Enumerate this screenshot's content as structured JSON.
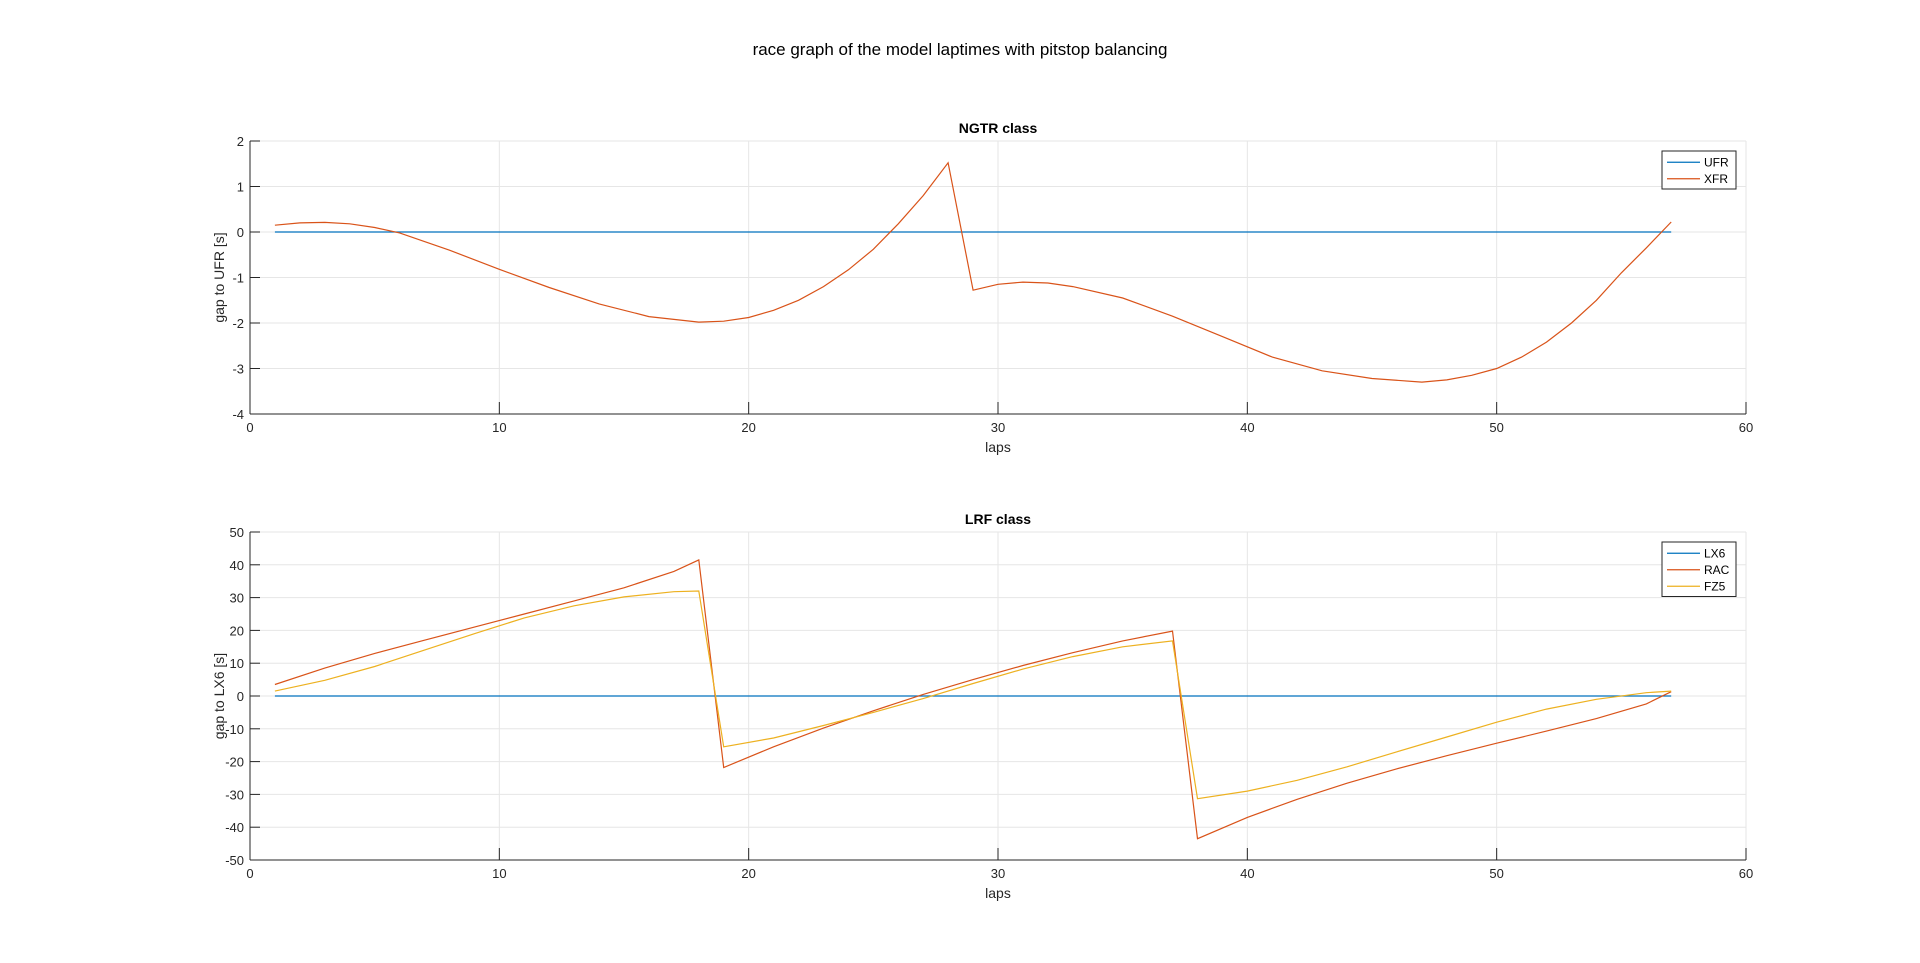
{
  "figure": {
    "suptitle": "race graph of the model laptimes with pitstop balancing"
  },
  "chart_data": [
    {
      "type": "line",
      "title": "NGTR class",
      "xlabel": "laps",
      "ylabel": "gap to UFR [s]",
      "xlim": [
        0,
        60
      ],
      "ylim": [
        -4,
        2
      ],
      "xticks": [
        "0",
        "10",
        "20",
        "30",
        "40",
        "50",
        "60"
      ],
      "yticks": [
        "2",
        "1",
        "0",
        "-1",
        "-2",
        "-3",
        "-4"
      ],
      "xtick_values": [
        0,
        10,
        20,
        30,
        40,
        50,
        60
      ],
      "ytick_values": [
        2,
        1,
        0,
        -1,
        -2,
        -3,
        -4
      ],
      "grid": true,
      "legend_position": "top-right",
      "series": [
        {
          "name": "UFR",
          "color": "#0072BD",
          "x": [
            1,
            57
          ],
          "y": [
            0,
            0
          ]
        },
        {
          "name": "XFR",
          "color": "#D95319",
          "x": [
            1,
            2,
            3,
            4,
            5,
            6,
            8,
            10,
            12,
            14,
            16,
            18,
            19,
            20,
            21,
            22,
            23,
            24,
            25,
            26,
            27,
            28,
            29,
            30,
            31,
            32,
            33,
            35,
            37,
            39,
            41,
            43,
            45,
            47,
            48,
            49,
            50,
            51,
            52,
            53,
            54,
            55,
            56,
            57
          ],
          "y": [
            0.15,
            0.2,
            0.21,
            0.18,
            0.1,
            -0.02,
            -0.4,
            -0.82,
            -1.22,
            -1.58,
            -1.86,
            -1.98,
            -1.96,
            -1.88,
            -1.72,
            -1.5,
            -1.2,
            -0.83,
            -0.38,
            0.18,
            0.8,
            1.52,
            -1.28,
            -1.15,
            -1.1,
            -1.12,
            -1.2,
            -1.45,
            -1.85,
            -2.3,
            -2.75,
            -3.05,
            -3.22,
            -3.3,
            -3.25,
            -3.15,
            -3.0,
            -2.75,
            -2.42,
            -2.0,
            -1.5,
            -0.9,
            -0.35,
            0.22
          ]
        }
      ]
    },
    {
      "type": "line",
      "title": "LRF class",
      "xlabel": "laps",
      "ylabel": "gap to LX6 [s]",
      "xlim": [
        0,
        60
      ],
      "ylim": [
        -50,
        50
      ],
      "xticks": [
        "0",
        "10",
        "20",
        "30",
        "40",
        "50",
        "60"
      ],
      "yticks": [
        "50",
        "40",
        "30",
        "20",
        "10",
        "0",
        "-10",
        "-20",
        "-30",
        "-40",
        "-50"
      ],
      "xtick_values": [
        0,
        10,
        20,
        30,
        40,
        50,
        60
      ],
      "ytick_values": [
        50,
        40,
        30,
        20,
        10,
        0,
        -10,
        -20,
        -30,
        -40,
        -50
      ],
      "grid": true,
      "legend_position": "top-right",
      "series": [
        {
          "name": "LX6",
          "color": "#0072BD",
          "x": [
            1,
            57
          ],
          "y": [
            0,
            0
          ]
        },
        {
          "name": "RAC",
          "color": "#D95319",
          "x": [
            1,
            3,
            5,
            7,
            9,
            11,
            13,
            15,
            17,
            18,
            19,
            21,
            23,
            25,
            27,
            29,
            31,
            33,
            35,
            37,
            38,
            40,
            42,
            44,
            46,
            48,
            50,
            52,
            54,
            56,
            57
          ],
          "y": [
            3.5,
            8.5,
            13.0,
            17.0,
            21.0,
            25.0,
            29.0,
            33.0,
            38.0,
            41.5,
            -21.8,
            -15.5,
            -9.8,
            -4.5,
            0.5,
            5.0,
            9.3,
            13.2,
            16.8,
            19.8,
            -43.5,
            -37.0,
            -31.5,
            -26.6,
            -22.2,
            -18.2,
            -14.4,
            -10.7,
            -6.9,
            -2.4,
            1.3
          ]
        },
        {
          "name": "FZ5",
          "color": "#EDB120",
          "x": [
            1,
            3,
            5,
            7,
            9,
            11,
            13,
            15,
            17,
            18,
            19,
            21,
            23,
            25,
            27,
            29,
            31,
            33,
            35,
            37,
            38,
            40,
            42,
            44,
            46,
            48,
            50,
            52,
            54,
            56,
            57
          ],
          "y": [
            1.5,
            4.8,
            9.0,
            14.0,
            19.0,
            23.8,
            27.5,
            30.2,
            31.8,
            32.0,
            -15.5,
            -12.8,
            -9.0,
            -5.0,
            -0.8,
            3.8,
            8.2,
            12.0,
            15.0,
            16.8,
            -31.3,
            -29.0,
            -25.7,
            -21.6,
            -17.0,
            -12.5,
            -8.0,
            -4.0,
            -1.0,
            1.0,
            1.5
          ]
        }
      ]
    }
  ]
}
